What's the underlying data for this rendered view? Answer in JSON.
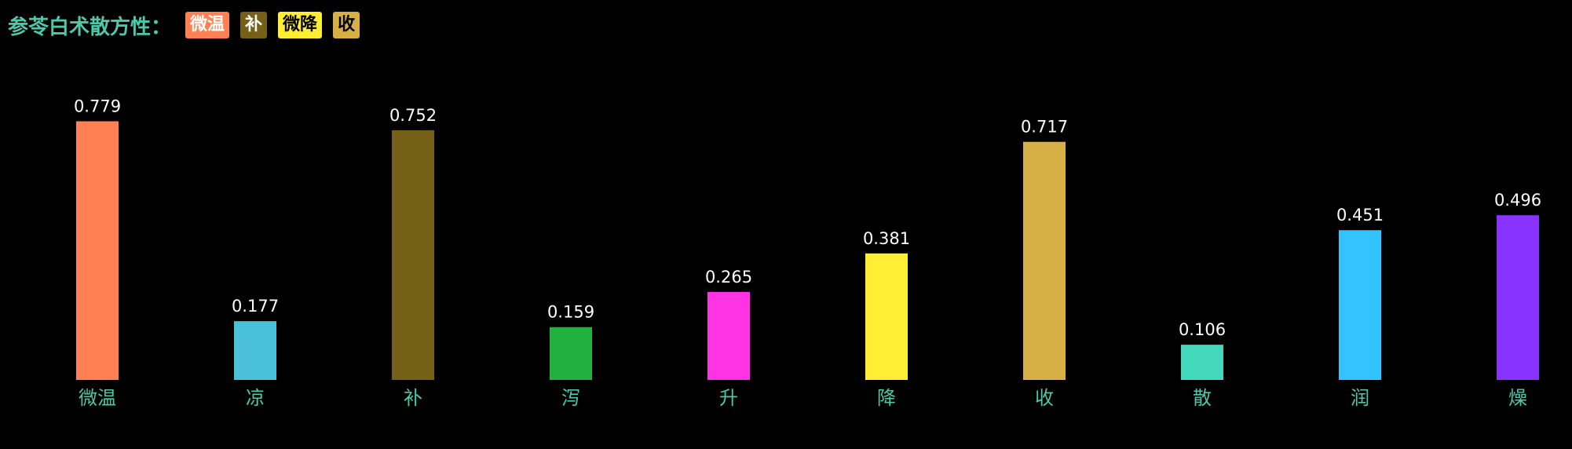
{
  "header": {
    "title": "参苓白术散方性：",
    "tags": [
      {
        "text": "微温",
        "color": "#ff8052",
        "text_color": "#ffffff"
      },
      {
        "text": "补",
        "color": "#765f16",
        "text_color": "#ffffff"
      },
      {
        "text": "微降",
        "color": "#ffee33",
        "text_color": "#000000"
      },
      {
        "text": "收",
        "color": "#d6b044",
        "text_color": "#000000"
      }
    ]
  },
  "chart_data": {
    "type": "bar",
    "categories": [
      "微温",
      "凉",
      "补",
      "泻",
      "升",
      "降",
      "收",
      "散",
      "润",
      "燥"
    ],
    "values": [
      0.779,
      0.177,
      0.752,
      0.159,
      0.265,
      0.381,
      0.717,
      0.106,
      0.451,
      0.496
    ],
    "colors": [
      "#ff8052",
      "#4ac0d9",
      "#765f16",
      "#22b03e",
      "#ff33e4",
      "#ffee33",
      "#d6b044",
      "#44d9bd",
      "#33c3ff",
      "#8833ff"
    ]
  }
}
